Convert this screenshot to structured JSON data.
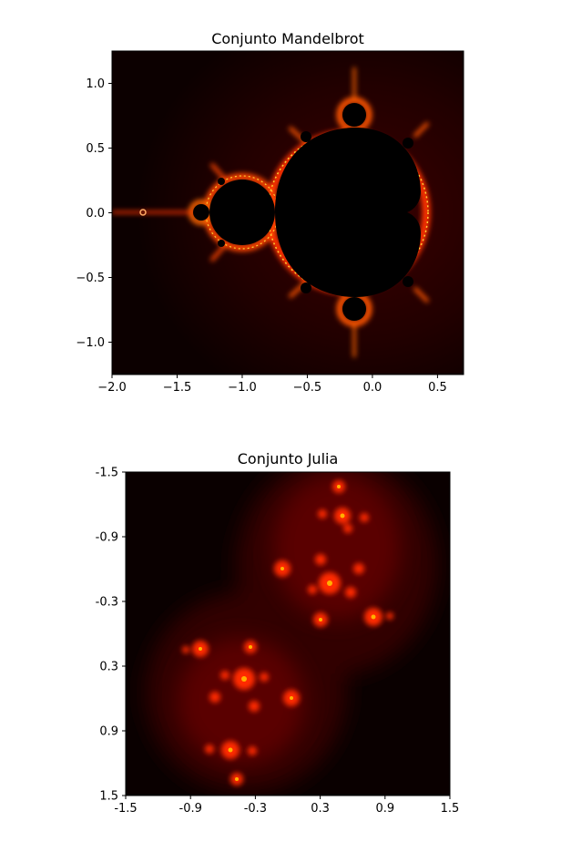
{
  "chart_data": [
    {
      "type": "heatmap",
      "title": "Conjunto Mandelbrot",
      "xlabel": "",
      "ylabel": "",
      "xlim": [
        -2.0,
        0.7
      ],
      "ylim": [
        -1.25,
        1.25
      ],
      "x_ticks": [
        -2.0,
        -1.5,
        -1.0,
        -0.5,
        0.0,
        0.5
      ],
      "x_tick_labels": [
        "−2.0",
        "−1.5",
        "−1.0",
        "−0.5",
        "0.0",
        "0.5"
      ],
      "y_ticks": [
        1.0,
        0.5,
        0.0,
        -0.5,
        -1.0
      ],
      "y_tick_labels": [
        "1.0",
        "0.5",
        "0.0",
        "−0.5",
        "−1.0"
      ],
      "colormap": "hot",
      "grid": false
    },
    {
      "type": "heatmap",
      "title": "Conjunto Julia",
      "xlabel": "",
      "ylabel": "",
      "xlim": [
        -1.5,
        1.5
      ],
      "ylim": [
        -1.5,
        1.5
      ],
      "y_inverted": true,
      "x_ticks": [
        -1.5,
        -0.9,
        -0.3,
        0.3,
        0.9,
        1.5
      ],
      "x_tick_labels": [
        "-1.5",
        "-0.9",
        "-0.3",
        "0.3",
        "0.9",
        "1.5"
      ],
      "y_ticks": [
        -1.5,
        -0.9,
        -0.3,
        0.3,
        0.9,
        1.5
      ],
      "y_tick_labels": [
        "-1.5",
        "-0.9",
        "-0.3",
        "0.3",
        "0.9",
        "1.5"
      ],
      "colormap": "hot",
      "grid": false
    }
  ]
}
